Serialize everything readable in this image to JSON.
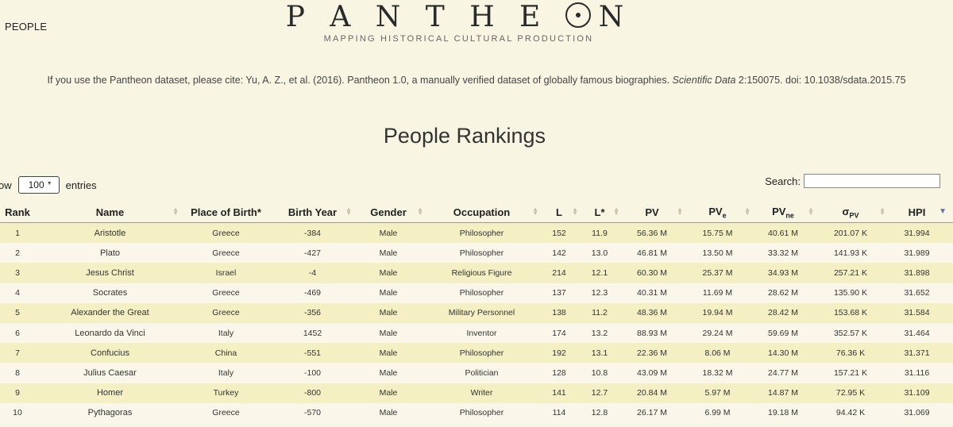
{
  "nav": {
    "people_label": "PEOPLE"
  },
  "logo": {
    "title": "PANTHEON",
    "subtitle": "MAPPING HISTORICAL CULTURAL PRODUCTION"
  },
  "citation": {
    "prefix": "If you use the Pantheon dataset, please cite: Yu, A. Z., et al. (2016). Pantheon 1.0, a manually verified dataset of globally famous biographies. ",
    "journal": "Scientific Data",
    "suffix": " 2:150075. doi: 10.1038/sdata.2015.75"
  },
  "page_title": "People Rankings",
  "length_control": {
    "lead": "ow",
    "value": "100",
    "trail": "entries"
  },
  "search": {
    "label": "Search:",
    "value": ""
  },
  "table": {
    "headers": {
      "rank": "Rank",
      "name": "Name",
      "birthplace": "Place of Birth*",
      "birthyear": "Birth Year",
      "gender": "Gender",
      "occupation": "Occupation",
      "l": "L",
      "lstar": "L*",
      "pv": "PV",
      "pve_base": "PV",
      "pve_sub": "e",
      "pvne_base": "PV",
      "pvne_sub": "ne",
      "sigma_base": "σ",
      "sigma_sub": "PV",
      "hpi": "HPI"
    },
    "sorted_column": "HPI",
    "sort_direction": "descending",
    "rows": [
      {
        "rank": "1",
        "name": "Aristotle",
        "birthplace": "Greece",
        "birthyear": "-384",
        "gender": "Male",
        "occupation": "Philosopher",
        "l": "152",
        "lstar": "11.9",
        "pv": "56.36 M",
        "pve": "15.75 M",
        "pvne": "40.61 M",
        "sigma": "201.07 K",
        "hpi": "31.994"
      },
      {
        "rank": "2",
        "name": "Plato",
        "birthplace": "Greece",
        "birthyear": "-427",
        "gender": "Male",
        "occupation": "Philosopher",
        "l": "142",
        "lstar": "13.0",
        "pv": "46.81 M",
        "pve": "13.50 M",
        "pvne": "33.32 M",
        "sigma": "141.93 K",
        "hpi": "31.989"
      },
      {
        "rank": "3",
        "name": "Jesus Christ",
        "birthplace": "Israel",
        "birthyear": "-4",
        "gender": "Male",
        "occupation": "Religious Figure",
        "l": "214",
        "lstar": "12.1",
        "pv": "60.30 M",
        "pve": "25.37 M",
        "pvne": "34.93 M",
        "sigma": "257.21 K",
        "hpi": "31.898"
      },
      {
        "rank": "4",
        "name": "Socrates",
        "birthplace": "Greece",
        "birthyear": "-469",
        "gender": "Male",
        "occupation": "Philosopher",
        "l": "137",
        "lstar": "12.3",
        "pv": "40.31 M",
        "pve": "11.69 M",
        "pvne": "28.62 M",
        "sigma": "135.90 K",
        "hpi": "31.652"
      },
      {
        "rank": "5",
        "name": "Alexander the Great",
        "birthplace": "Greece",
        "birthyear": "-356",
        "gender": "Male",
        "occupation": "Military Personnel",
        "l": "138",
        "lstar": "11.2",
        "pv": "48.36 M",
        "pve": "19.94 M",
        "pvne": "28.42 M",
        "sigma": "153.68 K",
        "hpi": "31.584"
      },
      {
        "rank": "6",
        "name": "Leonardo da Vinci",
        "birthplace": "Italy",
        "birthyear": "1452",
        "gender": "Male",
        "occupation": "Inventor",
        "l": "174",
        "lstar": "13.2",
        "pv": "88.93 M",
        "pve": "29.24 M",
        "pvne": "59.69 M",
        "sigma": "352.57 K",
        "hpi": "31.464"
      },
      {
        "rank": "7",
        "name": "Confucius",
        "birthplace": "China",
        "birthyear": "-551",
        "gender": "Male",
        "occupation": "Philosopher",
        "l": "192",
        "lstar": "13.1",
        "pv": "22.36 M",
        "pve": "8.06 M",
        "pvne": "14.30 M",
        "sigma": "76.36 K",
        "hpi": "31.371"
      },
      {
        "rank": "8",
        "name": "Julius Caesar",
        "birthplace": "Italy",
        "birthyear": "-100",
        "gender": "Male",
        "occupation": "Politician",
        "l": "128",
        "lstar": "10.8",
        "pv": "43.09 M",
        "pve": "18.32 M",
        "pvne": "24.77 M",
        "sigma": "157.21 K",
        "hpi": "31.116"
      },
      {
        "rank": "9",
        "name": "Homer",
        "birthplace": "Turkey",
        "birthyear": "-800",
        "gender": "Male",
        "occupation": "Writer",
        "l": "141",
        "lstar": "12.7",
        "pv": "20.84 M",
        "pve": "5.97 M",
        "pvne": "14.87 M",
        "sigma": "72.95 K",
        "hpi": "31.109"
      },
      {
        "rank": "10",
        "name": "Pythagoras",
        "birthplace": "Greece",
        "birthyear": "-570",
        "gender": "Male",
        "occupation": "Philosopher",
        "l": "114",
        "lstar": "12.8",
        "pv": "26.17 M",
        "pve": "6.99 M",
        "pvne": "19.18 M",
        "sigma": "94.42 K",
        "hpi": "31.069"
      }
    ]
  },
  "colors": {
    "background": "#f9f5e3",
    "row_odd": "#f5efc4",
    "row_even": "#faf7ea",
    "sort_active": "#5b6fb0"
  }
}
